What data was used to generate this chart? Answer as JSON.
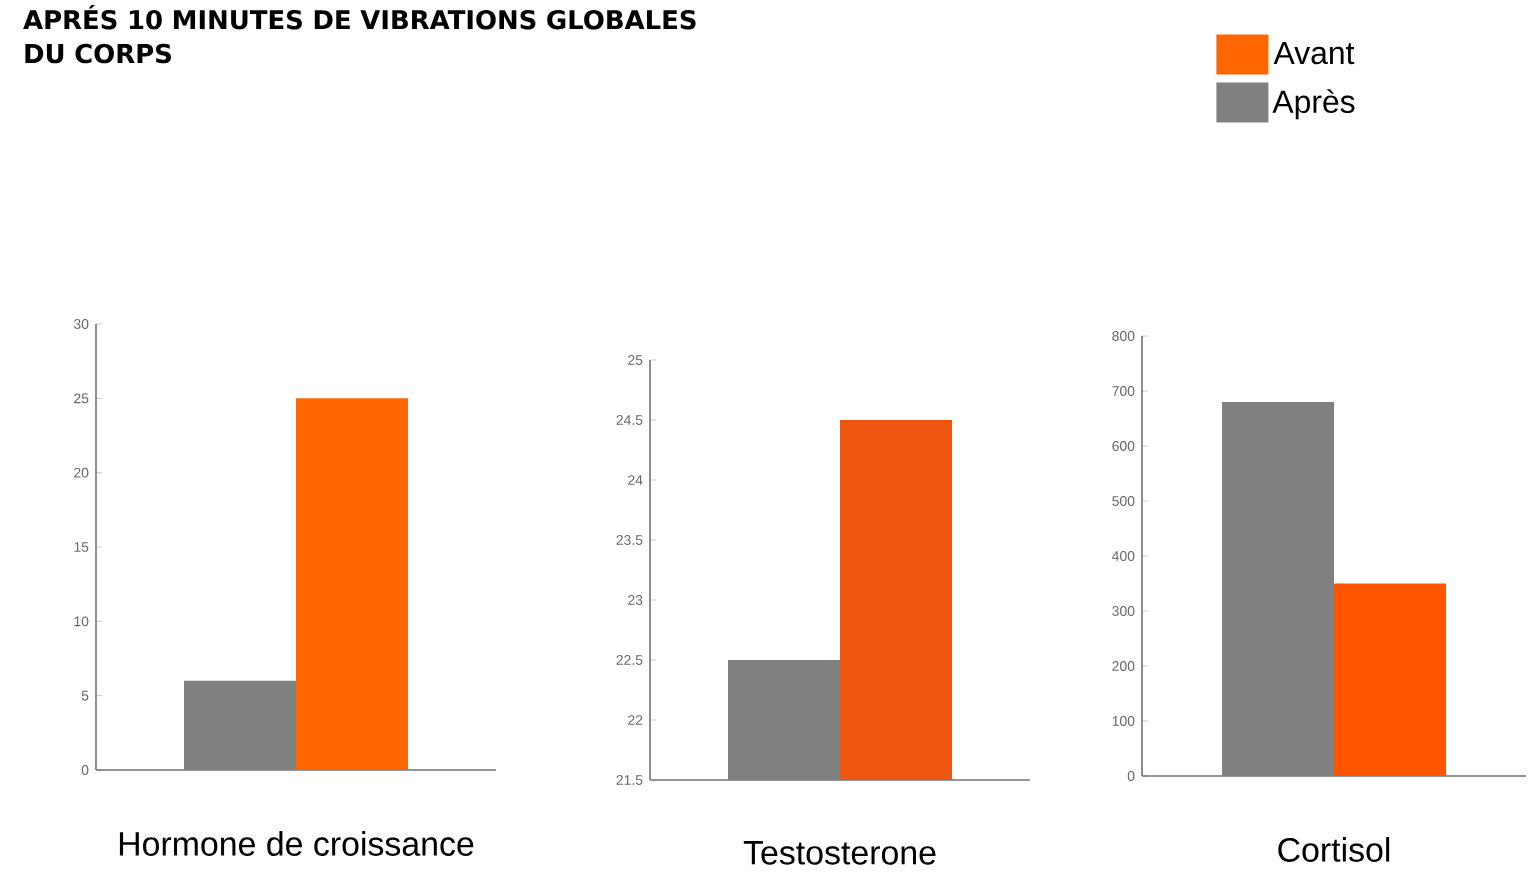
{
  "chart_data": [
    {
      "type": "bar",
      "title": "APRÉS 10 MINUTES DE VIBRATIONS GLOBALES DU CORPS",
      "legend": "top right",
      "categories": [
        "Hormone de croissance"
      ],
      "ylim": [
        0,
        30
      ],
      "yticks": [
        0,
        5,
        10,
        15,
        20,
        25,
        30
      ],
      "series": [
        {
          "name": "Après",
          "color": "#808080",
          "values": [
            6
          ]
        },
        {
          "name": "Avant",
          "color": "#ff6600",
          "values": [
            25
          ]
        }
      ]
    },
    {
      "type": "bar",
      "categories": [
        "Testosterone"
      ],
      "ylim": [
        21.5,
        25
      ],
      "yticks": [
        21.5,
        22,
        22.5,
        23,
        23.5,
        24,
        24.5,
        25
      ],
      "series": [
        {
          "color": "#808080",
          "values": [
            22.5
          ]
        },
        {
          "color": "#ee5511",
          "values": [
            24.5
          ]
        }
      ]
    },
    {
      "type": "bar",
      "categories": [
        "Cortisol"
      ],
      "ylim": [
        0,
        800
      ],
      "yticks": [
        0,
        100,
        200,
        300,
        400,
        500,
        600,
        700,
        800
      ],
      "series": [
        {
          "color": "#808080",
          "values": [
            680
          ]
        },
        {
          "color": "#ff5500",
          "values": [
            350
          ]
        }
      ]
    }
  ]
}
